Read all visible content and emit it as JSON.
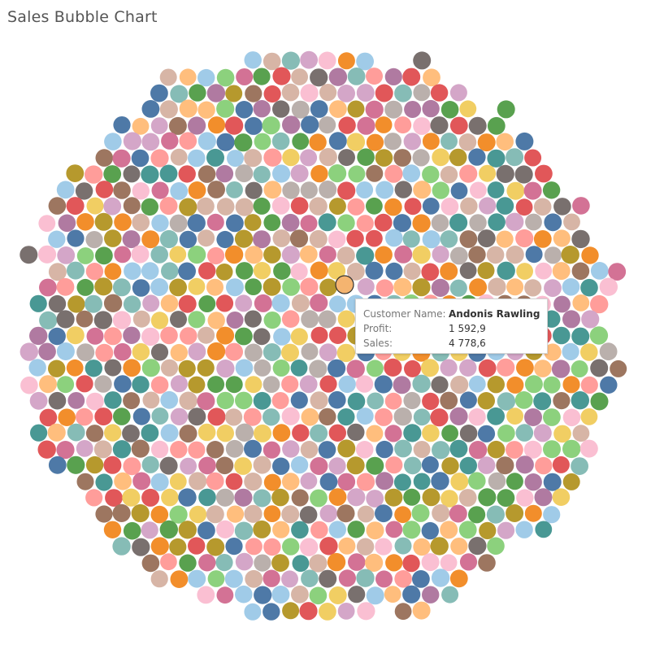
{
  "page": {
    "title": "Sales Bubble Chart"
  },
  "tooltip": {
    "rows": [
      {
        "label": "Customer Name:",
        "value": "Andonis Rawling"
      },
      {
        "label": "Profit:",
        "value": "1 592,9"
      },
      {
        "label": "Sales:",
        "value": "4 778,6"
      }
    ]
  },
  "chart_data": {
    "type": "scatter",
    "title": "Sales Bubble Chart",
    "mark": "packed-bubble",
    "legend": "none",
    "grid": false,
    "highlighted": {
      "customer_name": "Andonis Rawling",
      "profit": 1592.9,
      "sales": 4778.6,
      "color": "#f4b470"
    },
    "palette": [
      "#4e79a7",
      "#a0cbe8",
      "#f28e2b",
      "#ffbe7d",
      "#59a14f",
      "#8cd17d",
      "#b6992d",
      "#f1ce63",
      "#499894",
      "#86bcb6",
      "#e15759",
      "#ff9d9a",
      "#79706e",
      "#bab0ac",
      "#d37295",
      "#fabfd2",
      "#b07aa1",
      "#d4a6c8",
      "#9d7660",
      "#d7b5a6"
    ]
  }
}
